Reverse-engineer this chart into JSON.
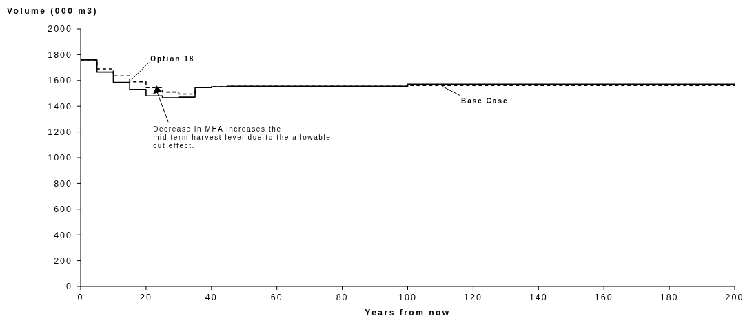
{
  "chart_data": {
    "type": "step",
    "xlabel": "Years from now",
    "ylabel": "Volume (000 m3)",
    "xlim": [
      0,
      200
    ],
    "xticks": [
      0,
      20,
      40,
      60,
      80,
      100,
      120,
      140,
      160,
      180,
      200
    ],
    "ylim": [
      0,
      2000
    ],
    "yticks": [
      0,
      200,
      400,
      600,
      800,
      1000,
      1200,
      1400,
      1600,
      1800,
      2000
    ],
    "series": [
      {
        "name": "Base Case",
        "color": "#000000",
        "line_style": "solid",
        "x": [
          0,
          5,
          10,
          15,
          20,
          25,
          30,
          35,
          40,
          45,
          100,
          200
        ],
        "values": [
          1760,
          1665,
          1585,
          1530,
          1480,
          1465,
          1470,
          1545,
          1550,
          1555,
          1570,
          1570
        ]
      },
      {
        "name": "Option 18",
        "color": "#000000",
        "line_style": "dashed",
        "x": [
          0,
          5,
          10,
          15,
          20,
          25,
          30,
          35,
          40,
          45,
          100,
          200
        ],
        "values": [
          1760,
          1690,
          1635,
          1590,
          1545,
          1510,
          1495,
          1545,
          1550,
          1555,
          1560,
          1560
        ]
      }
    ],
    "annotations": [
      {
        "text": "Decrease in MHA increases the\nmid term harvest level due to the allowable\ncut effect.",
        "x": 23,
        "y": 1550
      }
    ]
  }
}
